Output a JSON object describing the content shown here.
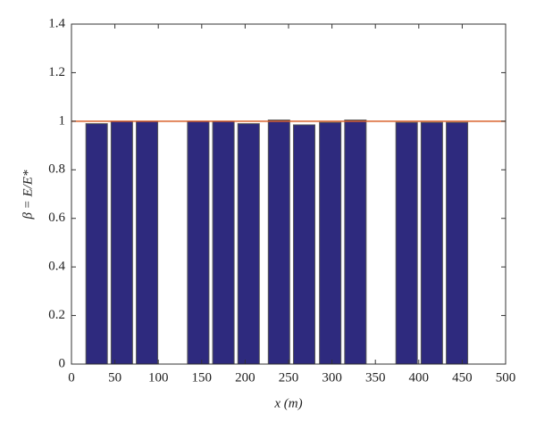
{
  "chart_data": {
    "type": "bar",
    "x_label": "x (m)",
    "y_label": "β = E/E*",
    "x": [
      29,
      58,
      87,
      146,
      175,
      204,
      239,
      268,
      298,
      327,
      386,
      415,
      444
    ],
    "values": [
      0.99,
      1.0,
      1.0,
      1.0,
      1.0,
      0.99,
      1.005,
      0.985,
      0.995,
      1.005,
      0.995,
      0.995,
      0.995
    ],
    "color": "#2e2a7e",
    "reference_line": {
      "value": 1,
      "color": "#d9622b"
    },
    "xlim": [
      0,
      500
    ],
    "xticks": [
      0,
      50,
      100,
      150,
      200,
      250,
      300,
      350,
      400,
      450,
      500
    ],
    "ylim": [
      0,
      1.4
    ],
    "yticks": [
      0,
      0.2,
      0.4,
      0.6,
      0.8,
      1,
      1.2,
      1.4
    ],
    "grid": false
  }
}
